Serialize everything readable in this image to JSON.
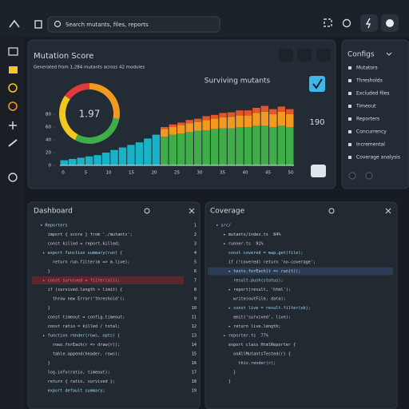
{
  "toolbar": {
    "search_placeholder": "Search mutants, files, reports"
  },
  "score_panel": {
    "title": "Mutation Score",
    "subtitle": "Generated from 1,284 mutants across 42 modules",
    "score": 1.97,
    "donut_segments": [
      {
        "value": 28,
        "color": "#f29a1f"
      },
      {
        "value": 30,
        "color": "#3fae49"
      },
      {
        "value": 27,
        "color": "#f2c81f"
      },
      {
        "value": 15,
        "color": "#e23a3a"
      }
    ],
    "side_value": "190",
    "chart": {
      "type": "bar",
      "title": "Surviving mutants",
      "ylim": [
        0,
        100
      ],
      "yticks": [
        0,
        20,
        40,
        60,
        80
      ],
      "x_labels": [
        "0",
        "5",
        "10",
        "15",
        "20",
        "25",
        "30",
        "35",
        "40",
        "45",
        "50"
      ],
      "series": [
        {
          "color": "#19b3c7",
          "values": [
            8,
            10,
            12,
            14,
            16,
            20,
            24,
            28,
            32,
            36,
            42,
            48,
            0,
            0,
            0,
            0,
            0,
            0,
            0,
            0,
            0,
            0,
            0,
            0,
            0,
            0,
            0,
            0
          ]
        },
        {
          "color": "#3fae49",
          "values": [
            0,
            0,
            0,
            0,
            0,
            0,
            0,
            0,
            0,
            0,
            0,
            0,
            45,
            48,
            50,
            52,
            54,
            55,
            57,
            58,
            58,
            60,
            60,
            62,
            62,
            60,
            62,
            60
          ]
        },
        {
          "color": "#f29a1f",
          "values": [
            0,
            0,
            0,
            0,
            0,
            0,
            0,
            0,
            0,
            0,
            0,
            0,
            12,
            12,
            13,
            14,
            14,
            16,
            16,
            17,
            18,
            18,
            18,
            20,
            22,
            20,
            22,
            20
          ]
        },
        {
          "color": "#e2562a",
          "values": [
            0,
            0,
            0,
            0,
            0,
            0,
            0,
            0,
            0,
            0,
            0,
            0,
            3,
            4,
            4,
            5,
            5,
            6,
            6,
            7,
            7,
            8,
            8,
            8,
            9,
            8,
            8,
            8
          ]
        }
      ]
    }
  },
  "config_panel": {
    "title": "Configs",
    "items": [
      "Mutators",
      "Thresholds",
      "Excluded files",
      "Timeout",
      "Reporters",
      "Concurrency",
      "Incremental",
      "Coverage analysis"
    ]
  },
  "dashboard_panel": {
    "title": "Dashboard",
    "lines": [
      "  ▾ Reporters",
      "     import { score } from './mutants';",
      "     const killed = report.killed;",
      "   ▸ export function summary(run) {",
      "       return run.filter(m => m.live);",
      "     }",
      "   ▸ const survived = filter(all);",
      "     if (survived.length > limit) {",
      "       throw new Error('threshold');",
      "     }",
      "     const timeout = config.timeout;",
      "     const ratio = killed / total;",
      "   ▸ function render(rows, opts) {",
      "       rows.forEach(r => draw(r));",
      "       table.append(header, rows);",
      "     }",
      "     log.info(ratio, timeout);",
      "     return { ratio, survived };",
      "     export default summary;"
    ],
    "highlight_line": 6,
    "line_numbers": [
      1,
      2,
      3,
      4,
      5,
      6,
      7,
      8,
      9,
      10,
      11,
      12,
      13,
      14,
      15,
      16,
      17,
      18,
      19
    ]
  },
  "coverage_panel": {
    "title": "Coverage",
    "lines": [
      "  ▾ src/",
      "     ▸ mutants/index.ts  84%",
      "     ▸ runner.ts  91%",
      "       const covered = map.get(file);",
      "       if (!covered) return 'no-coverage';",
      "       ▸ tests.forEach(t => run(t));",
      "         result.push(status);",
      "       ▸ report(result, 'html');",
      "         write(outFile, data);",
      "       ▸ const live = result.filter(ok);",
      "         emit('survived', live);",
      "       ▸ return live.length;",
      "     ▸ reporter.ts  77%",
      "       export class HtmlReporter {",
      "         onAllMutantsTested(r) {",
      "           this.render(r);",
      "         }",
      "       }"
    ],
    "highlight_line": 5
  }
}
